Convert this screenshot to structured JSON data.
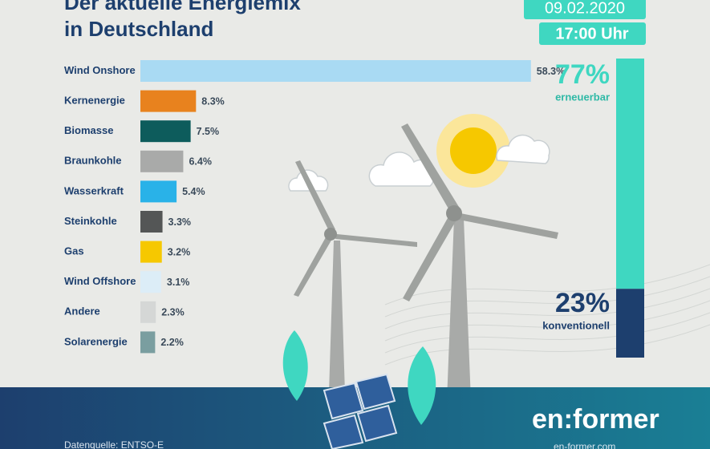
{
  "header": {
    "title_lines": [
      "Der aktuelle Energiemix",
      "in Deutschland"
    ],
    "date": "09.02.2020",
    "time": "17:00 Uhr"
  },
  "chart_data": [
    {
      "type": "hbar",
      "categories": [
        "Wind Onshore",
        "Kernenergie",
        "Biomasse",
        "Braunkohle",
        "Wasserkraft",
        "Steinkohle",
        "Gas",
        "Wind Offshore",
        "Andere",
        "Solarenergie"
      ],
      "values": [
        58.3,
        8.3,
        7.5,
        6.4,
        5.4,
        3.3,
        3.2,
        3.1,
        2.3,
        2.2
      ],
      "value_labels": [
        "58.3%",
        "8.3%",
        "7.5%",
        "6.4%",
        "5.4%",
        "3.3%",
        "3.2%",
        "3.1%",
        "2.3%",
        "2.2%"
      ],
      "colors": [
        "#a9daf3",
        "#e8821e",
        "#0d5c5c",
        "#a9aaa9",
        "#29b2e8",
        "#545656",
        "#f6c800",
        "#dcedf7",
        "#d5d7d6",
        "#7a9ea0"
      ]
    },
    {
      "type": "stacked-share",
      "series": [
        {
          "name": "erneuerbar",
          "color": "#3fd7c1",
          "values": [
            77
          ],
          "value_labels": [
            "77%"
          ]
        },
        {
          "name": "konventionell",
          "color": "#1d3f6e",
          "values": [
            23
          ],
          "value_labels": [
            "23%"
          ]
        }
      ]
    }
  ],
  "footer": {
    "source": "Datenquelle: ENTSO-E",
    "brand": "en:former",
    "url": "en-former.com"
  }
}
